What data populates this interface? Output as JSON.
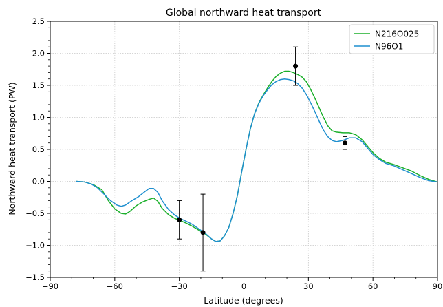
{
  "chart_data": {
    "type": "line",
    "title": "Global northward heat transport",
    "xlabel": "Latitude (degrees)",
    "ylabel": "Northward heat transport (PW)",
    "xlim": [
      -90,
      90
    ],
    "ylim": [
      -1.5,
      2.5
    ],
    "xticks": [
      -90,
      -60,
      -30,
      0,
      30,
      60,
      90
    ],
    "xtick_labels": [
      "−90",
      "−60",
      "−30",
      "0",
      "30",
      "60",
      "90"
    ],
    "yticks": [
      -1.5,
      -1.0,
      -0.5,
      0.0,
      0.5,
      1.0,
      1.5,
      2.0,
      2.5
    ],
    "ytick_labels": [
      "−1.5",
      "−1.0",
      "−0.5",
      "0.0",
      "0.5",
      "1.0",
      "1.5",
      "2.0",
      "2.5"
    ],
    "grid": true,
    "legend_position": "top-right",
    "series": [
      {
        "name": "N216O025",
        "color": "#1aaf2a",
        "points": [
          [
            -78,
            0.0
          ],
          [
            -74,
            -0.01
          ],
          [
            -70,
            -0.05
          ],
          [
            -66,
            -0.13
          ],
          [
            -63,
            -0.3
          ],
          [
            -60,
            -0.43
          ],
          [
            -57,
            -0.5
          ],
          [
            -55,
            -0.51
          ],
          [
            -53,
            -0.47
          ],
          [
            -50,
            -0.38
          ],
          [
            -47,
            -0.32
          ],
          [
            -44,
            -0.28
          ],
          [
            -42,
            -0.26
          ],
          [
            -40,
            -0.31
          ],
          [
            -38,
            -0.42
          ],
          [
            -35,
            -0.52
          ],
          [
            -32,
            -0.58
          ],
          [
            -29,
            -0.62
          ],
          [
            -27,
            -0.65
          ],
          [
            -24,
            -0.7
          ],
          [
            -21,
            -0.76
          ],
          [
            -18,
            -0.82
          ],
          [
            -15,
            -0.9
          ],
          [
            -13,
            -0.94
          ],
          [
            -11,
            -0.93
          ],
          [
            -9,
            -0.85
          ],
          [
            -7,
            -0.72
          ],
          [
            -5,
            -0.5
          ],
          [
            -3,
            -0.22
          ],
          [
            -1,
            0.15
          ],
          [
            1,
            0.5
          ],
          [
            3,
            0.82
          ],
          [
            5,
            1.06
          ],
          [
            7,
            1.23
          ],
          [
            9,
            1.35
          ],
          [
            11,
            1.46
          ],
          [
            13,
            1.56
          ],
          [
            15,
            1.64
          ],
          [
            17,
            1.69
          ],
          [
            19,
            1.72
          ],
          [
            21,
            1.72
          ],
          [
            23,
            1.7
          ],
          [
            25,
            1.67
          ],
          [
            27,
            1.63
          ],
          [
            29,
            1.56
          ],
          [
            31,
            1.44
          ],
          [
            33,
            1.3
          ],
          [
            35,
            1.15
          ],
          [
            37,
            1.0
          ],
          [
            39,
            0.87
          ],
          [
            41,
            0.79
          ],
          [
            43,
            0.77
          ],
          [
            46,
            0.76
          ],
          [
            49,
            0.76
          ],
          [
            52,
            0.73
          ],
          [
            55,
            0.65
          ],
          [
            58,
            0.53
          ],
          [
            60,
            0.45
          ],
          [
            63,
            0.36
          ],
          [
            66,
            0.3
          ],
          [
            70,
            0.26
          ],
          [
            74,
            0.21
          ],
          [
            78,
            0.16
          ],
          [
            82,
            0.09
          ],
          [
            86,
            0.03
          ],
          [
            90,
            -0.01
          ]
        ]
      },
      {
        "name": "N96O1",
        "color": "#1f8fcf",
        "points": [
          [
            -78,
            0.0
          ],
          [
            -74,
            -0.01
          ],
          [
            -71,
            -0.04
          ],
          [
            -68,
            -0.1
          ],
          [
            -65,
            -0.2
          ],
          [
            -62,
            -0.3
          ],
          [
            -59,
            -0.37
          ],
          [
            -57,
            -0.39
          ],
          [
            -55,
            -0.37
          ],
          [
            -52,
            -0.3
          ],
          [
            -49,
            -0.24
          ],
          [
            -46,
            -0.16
          ],
          [
            -44,
            -0.11
          ],
          [
            -42,
            -0.11
          ],
          [
            -40,
            -0.17
          ],
          [
            -38,
            -0.3
          ],
          [
            -35,
            -0.44
          ],
          [
            -32,
            -0.53
          ],
          [
            -29,
            -0.59
          ],
          [
            -27,
            -0.62
          ],
          [
            -24,
            -0.67
          ],
          [
            -21,
            -0.74
          ],
          [
            -18,
            -0.81
          ],
          [
            -15,
            -0.9
          ],
          [
            -13,
            -0.94
          ],
          [
            -11,
            -0.93
          ],
          [
            -9,
            -0.85
          ],
          [
            -7,
            -0.72
          ],
          [
            -5,
            -0.5
          ],
          [
            -3,
            -0.22
          ],
          [
            -1,
            0.15
          ],
          [
            1,
            0.5
          ],
          [
            3,
            0.82
          ],
          [
            5,
            1.06
          ],
          [
            7,
            1.22
          ],
          [
            9,
            1.34
          ],
          [
            11,
            1.43
          ],
          [
            13,
            1.51
          ],
          [
            15,
            1.56
          ],
          [
            17,
            1.59
          ],
          [
            19,
            1.6
          ],
          [
            21,
            1.59
          ],
          [
            23,
            1.57
          ],
          [
            25,
            1.53
          ],
          [
            27,
            1.46
          ],
          [
            29,
            1.36
          ],
          [
            31,
            1.23
          ],
          [
            33,
            1.09
          ],
          [
            35,
            0.94
          ],
          [
            37,
            0.8
          ],
          [
            39,
            0.7
          ],
          [
            41,
            0.64
          ],
          [
            43,
            0.62
          ],
          [
            46,
            0.64
          ],
          [
            49,
            0.68
          ],
          [
            52,
            0.68
          ],
          [
            55,
            0.62
          ],
          [
            58,
            0.5
          ],
          [
            60,
            0.42
          ],
          [
            63,
            0.34
          ],
          [
            66,
            0.28
          ],
          [
            70,
            0.24
          ],
          [
            74,
            0.18
          ],
          [
            78,
            0.12
          ],
          [
            82,
            0.06
          ],
          [
            86,
            0.01
          ],
          [
            90,
            -0.01
          ]
        ]
      }
    ],
    "observations": [
      {
        "x": -30,
        "y": -0.6,
        "ylow": -0.9,
        "yhigh": -0.3
      },
      {
        "x": -19,
        "y": -0.8,
        "ylow": -1.4,
        "yhigh": -0.2
      },
      {
        "x": 24,
        "y": 1.8,
        "ylow": 1.5,
        "yhigh": 2.1
      },
      {
        "x": 47,
        "y": 0.6,
        "ylow": 0.5,
        "yhigh": 0.7
      }
    ]
  }
}
